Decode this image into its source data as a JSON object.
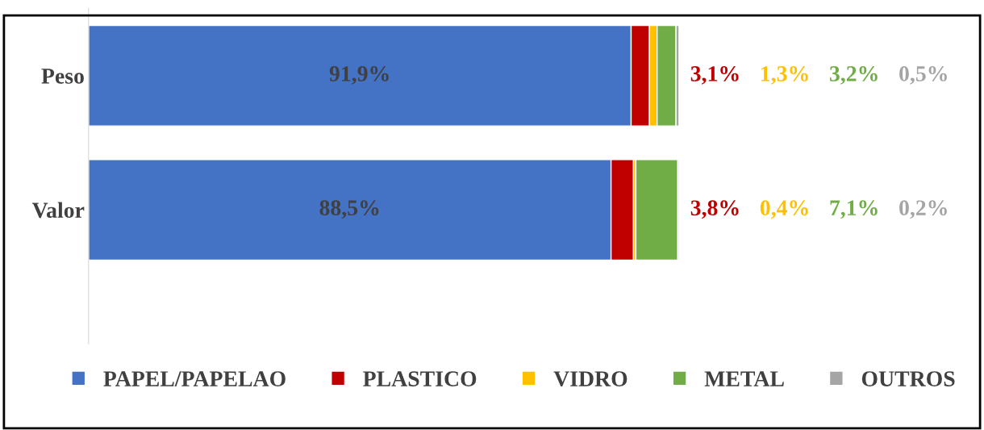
{
  "chart_data": {
    "type": "bar",
    "orientation": "horizontal",
    "stacked": true,
    "categories": [
      "Peso",
      "Valor"
    ],
    "series": [
      {
        "name": "PAPEL/PAPELAO",
        "color": "#4472c4",
        "values": [
          91.9,
          88.5
        ],
        "value_labels": [
          "91,9%",
          "88,5%"
        ]
      },
      {
        "name": "PLASTICO",
        "color": "#c00000",
        "values": [
          3.1,
          3.8
        ],
        "value_labels": [
          "3,1%",
          "3,8%"
        ]
      },
      {
        "name": "VIDRO",
        "color": "#ffc000",
        "values": [
          1.3,
          0.4
        ],
        "value_labels": [
          "1,3%",
          "0,4%"
        ]
      },
      {
        "name": "METAL",
        "color": "#70ad47",
        "values": [
          3.2,
          7.1
        ],
        "value_labels": [
          "3,2%",
          "7,1%"
        ]
      },
      {
        "name": "OUTROS",
        "color": "#a5a5a5",
        "values": [
          0.5,
          0.2
        ],
        "value_labels": [
          "0,5%",
          "0,2%"
        ]
      }
    ],
    "legend": "bottom",
    "tick_labels": "y"
  }
}
